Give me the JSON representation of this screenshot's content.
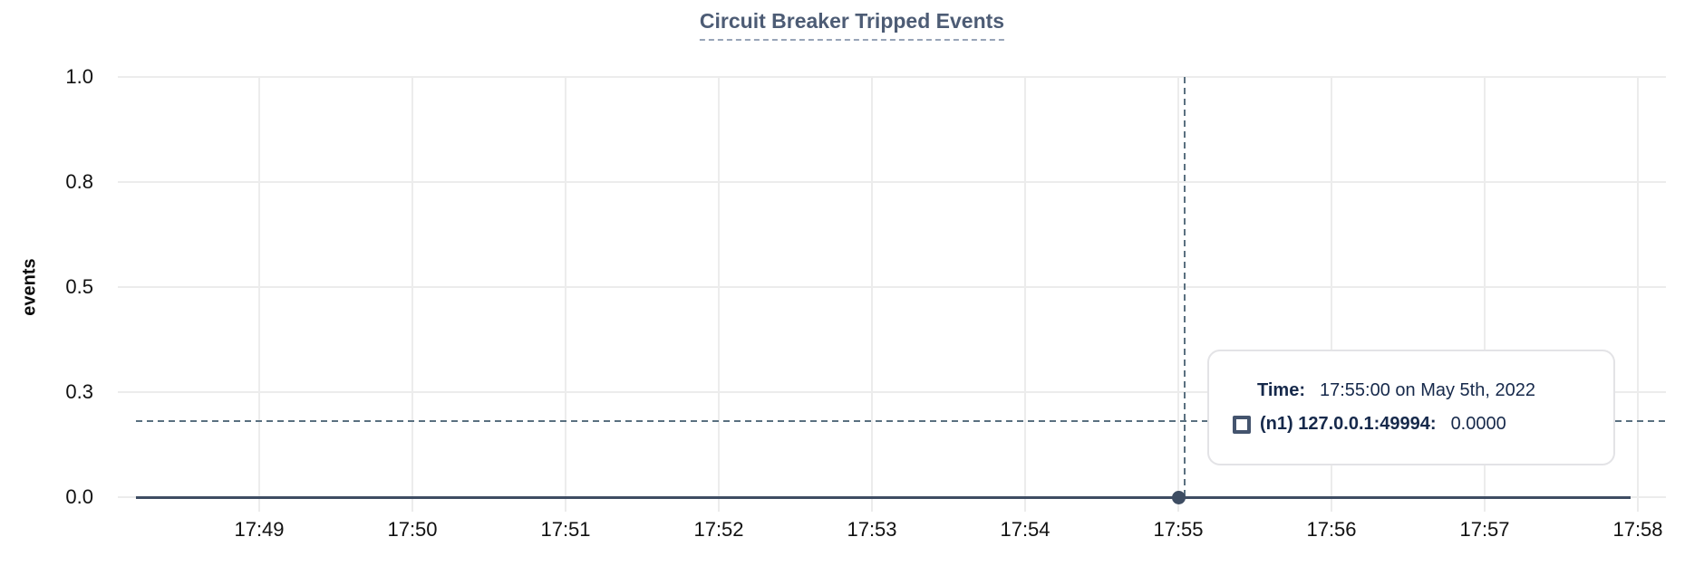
{
  "colors": {
    "title": "#4d5c75",
    "title_underline": "#98a4b8",
    "axis_text": "#111111",
    "gridline": "#ececec",
    "series": "#3e4d63",
    "crosshair": "#5a7080",
    "tooltip_text": "#16294b",
    "tooltip_border": "#e3e3e6",
    "swatch_border": "#44546e",
    "background": "#ffffff"
  },
  "chart_data": {
    "type": "line",
    "title": "Circuit Breaker Tripped Events",
    "xlabel": "",
    "ylabel": "events",
    "ylim": [
      0,
      1
    ],
    "grid": true,
    "legend_position": "none",
    "x_ticks": [
      "17:49",
      "17:50",
      "17:51",
      "17:52",
      "17:53",
      "17:54",
      "17:55",
      "17:56",
      "17:57",
      "17:58"
    ],
    "y_ticks": [
      {
        "label": "0.0",
        "value": 0.0
      },
      {
        "label": "0.3",
        "value": 0.25
      },
      {
        "label": "0.5",
        "value": 0.5
      },
      {
        "label": "0.8",
        "value": 0.75
      },
      {
        "label": "1.0",
        "value": 1.0
      }
    ],
    "series": [
      {
        "name": "(n1) 127.0.0.1:49994",
        "color": "#3e4d63",
        "x": [
          "17:49",
          "17:50",
          "17:51",
          "17:52",
          "17:53",
          "17:54",
          "17:55",
          "17:56",
          "17:57",
          "17:58"
        ],
        "values": [
          0,
          0,
          0,
          0,
          0,
          0,
          0,
          0,
          0,
          0
        ]
      }
    ],
    "hovered_point": {
      "x": "17:55",
      "value": 0.0
    },
    "crosshair": {
      "x": "17:55",
      "y_value": 0.18
    }
  },
  "tooltip": {
    "time_label": "Time:",
    "time_value": "17:55:00 on May 5th, 2022",
    "series_swatch_icon": "square-outline-icon",
    "series_label": "(n1) 127.0.0.1:49994:",
    "series_value": "0.0000"
  }
}
